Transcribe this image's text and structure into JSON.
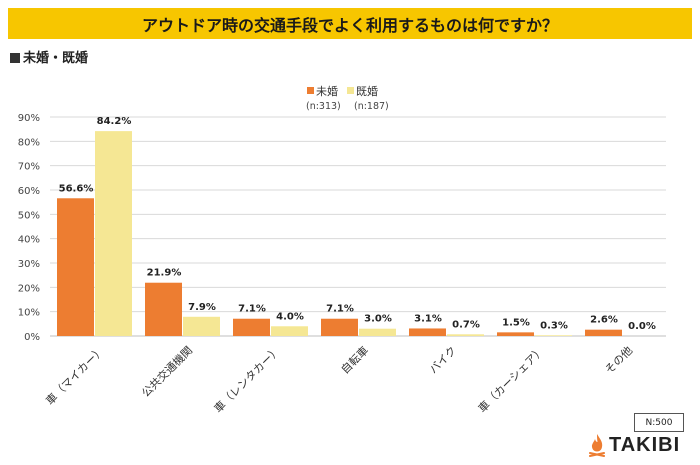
{
  "page_title": "アウトドア時の交通手段でよく利用するものは何ですか？",
  "subtitle": "未婚・既婚",
  "sample_note": "N:500",
  "brand": "TAKIBI",
  "colors": {
    "title_bg": "#f7c600",
    "unmarried": "#ed7d31",
    "married": "#f5e794"
  },
  "chart_data": {
    "type": "bar",
    "title": "アウトドア時の交通手段でよく利用するものは何ですか？",
    "categories": [
      "車（マイカー）",
      "公共交通機関",
      "車（レンタカー）",
      "自転車",
      "バイク",
      "車（カーシェア）",
      "その他"
    ],
    "series": [
      {
        "name": "未婚",
        "n": "(n:313)",
        "values": [
          56.6,
          21.9,
          7.1,
          7.1,
          3.1,
          1.5,
          2.6
        ]
      },
      {
        "name": "既婚",
        "n": "(n:187)",
        "values": [
          84.2,
          7.9,
          4.0,
          3.0,
          0.7,
          0.3,
          0.0
        ]
      }
    ],
    "ylim": [
      0,
      90
    ],
    "yticks": [
      0,
      10,
      20,
      30,
      40,
      50,
      60,
      70,
      80,
      90
    ],
    "ytick_labels": [
      "0%",
      "10%",
      "20%",
      "30%",
      "40%",
      "50%",
      "60%",
      "70%",
      "80%",
      "90%"
    ],
    "unit": "%",
    "grid": true,
    "legend": "top-center",
    "xlabel": "",
    "ylabel": ""
  }
}
